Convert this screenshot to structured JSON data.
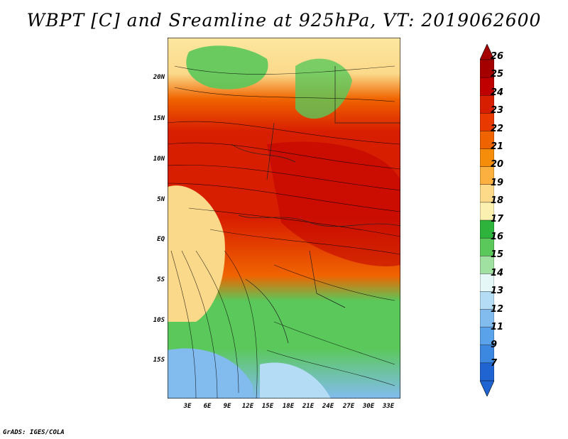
{
  "title": "WBPT [C] and Sreamline at 925hPa, VT: 2019062600",
  "credit": "GrADS: IGES/COLA",
  "lat_labels": [
    "20N",
    "15N",
    "10N",
    "5N",
    "EQ",
    "5S",
    "10S",
    "15S"
  ],
  "lon_labels": [
    "3E",
    "6E",
    "9E",
    "12E",
    "15E",
    "18E",
    "21E",
    "24E",
    "27E",
    "30E",
    "33E"
  ],
  "colorbar": {
    "labels": [
      "26",
      "25",
      "24",
      "23",
      "22",
      "21",
      "20",
      "19",
      "18",
      "17",
      "16",
      "15",
      "14",
      "13",
      "12",
      "11",
      "9",
      "7"
    ],
    "colors": [
      "#a50000",
      "#c00000",
      "#d81e00",
      "#e83a00",
      "#f06400",
      "#f58c0a",
      "#fbb040",
      "#fdd98a",
      "#fbf0b0",
      "#2eb43c",
      "#5ac85a",
      "#a0e0a0",
      "#e6f7f8",
      "#b4dcf5",
      "#82bcef",
      "#5aa2ea",
      "#3c87e0",
      "#2064d2"
    ]
  }
}
